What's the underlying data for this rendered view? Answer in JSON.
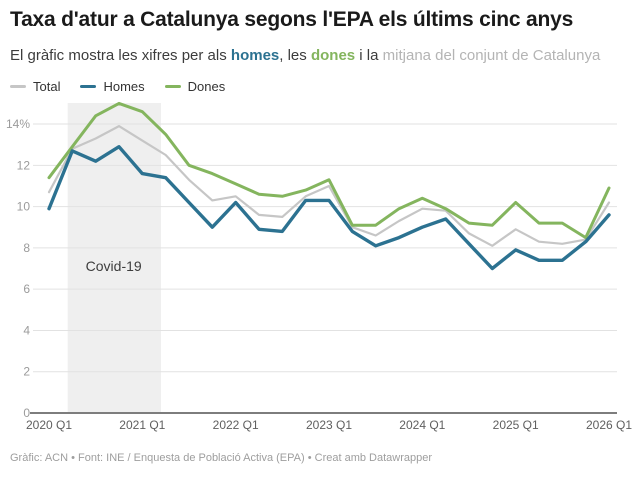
{
  "header": {
    "title": "Taxa d'atur a Catalunya segons l'EPA els últims cinc anys",
    "subtitle": {
      "prefix": "El gràfic mostra les xifres per als ",
      "homes_word": "homes",
      "mid1": ", les ",
      "dones_word": "dones",
      "mid2": " i la ",
      "muted_phrase": "mitjana del conjunt de Catalunya"
    }
  },
  "colors": {
    "total": "#c6c6c6",
    "homes": "#2c7291",
    "dones": "#84b55e",
    "muted_text": "#b4b4b4",
    "band": "#efefef",
    "gridline": "#e2e2e2",
    "axis": "#7d7d7d",
    "ytick_text": "#9b9b9b",
    "xtick_text": "#5f5f5f",
    "band_label_text": "#3d3d3d"
  },
  "chart_data": {
    "type": "line",
    "unit": "%",
    "title": "Taxa d'atur a Catalunya segons l'EPA els últims cinc anys",
    "x": [
      "2020 Q1",
      "2020 Q2",
      "2020 Q3",
      "2020 Q4",
      "2021 Q1",
      "2021 Q2",
      "2021 Q3",
      "2021 Q4",
      "2022 Q1",
      "2022 Q2",
      "2022 Q3",
      "2022 Q4",
      "2023 Q1",
      "2023 Q2",
      "2023 Q3",
      "2023 Q4",
      "2024 Q1",
      "2024 Q2",
      "2024 Q3",
      "2024 Q4",
      "2025 Q1",
      "2025 Q2",
      "2025 Q3",
      "2025 Q4",
      "2026 Q1"
    ],
    "series": [
      {
        "name": "Total",
        "color": "#c6c6c6",
        "width": 2.2,
        "values": [
          10.7,
          12.8,
          13.3,
          13.9,
          13.2,
          12.5,
          11.3,
          10.3,
          10.5,
          9.6,
          9.5,
          10.5,
          11.0,
          9.0,
          8.6,
          9.3,
          9.9,
          9.8,
          8.7,
          8.1,
          8.9,
          8.3,
          8.2,
          8.4,
          10.2
        ]
      },
      {
        "name": "Homes",
        "color": "#2c7291",
        "width": 3.4,
        "values": [
          9.9,
          12.7,
          12.2,
          12.9,
          11.6,
          11.4,
          10.2,
          9.0,
          10.2,
          8.9,
          8.8,
          10.3,
          10.3,
          8.8,
          8.1,
          8.5,
          9.0,
          9.4,
          8.2,
          7.0,
          7.9,
          7.4,
          7.4,
          8.3,
          9.6
        ]
      },
      {
        "name": "Dones",
        "color": "#84b55e",
        "width": 3.0,
        "values": [
          11.4,
          12.9,
          14.4,
          15.0,
          14.6,
          13.5,
          12.0,
          11.6,
          11.1,
          10.6,
          10.5,
          10.8,
          11.3,
          9.1,
          9.1,
          9.9,
          10.4,
          9.9,
          9.2,
          9.1,
          10.2,
          9.2,
          9.2,
          8.5,
          10.9
        ]
      }
    ],
    "ylim": [
      0,
      15.2
    ],
    "grid": true,
    "legend_position": "top-left",
    "yticks": [
      {
        "v": 14,
        "label": "14%"
      },
      {
        "v": 12,
        "label": "12"
      },
      {
        "v": 10,
        "label": "10"
      },
      {
        "v": 8,
        "label": "8"
      },
      {
        "v": 6,
        "label": "6"
      },
      {
        "v": 4,
        "label": "4"
      },
      {
        "v": 2,
        "label": "2"
      },
      {
        "v": 0,
        "label": "0"
      }
    ],
    "xticks": [
      {
        "q": 0,
        "label": "2020 Q1"
      },
      {
        "q": 4,
        "label": "2021 Q1"
      },
      {
        "q": 8,
        "label": "2022 Q1"
      },
      {
        "q": 12,
        "label": "2023 Q1"
      },
      {
        "q": 16,
        "label": "2024 Q1"
      },
      {
        "q": 20,
        "label": "2025 Q1"
      },
      {
        "q": 24,
        "label": "2026 Q1"
      }
    ],
    "band": {
      "label": "Covid-19",
      "from_q": 0.8,
      "to_q": 4.8
    }
  },
  "footer": {
    "credit": "Gràfic: ACN • Font: INE / Enquesta de Població Activa (EPA) • Creat amb Datawrapper"
  }
}
